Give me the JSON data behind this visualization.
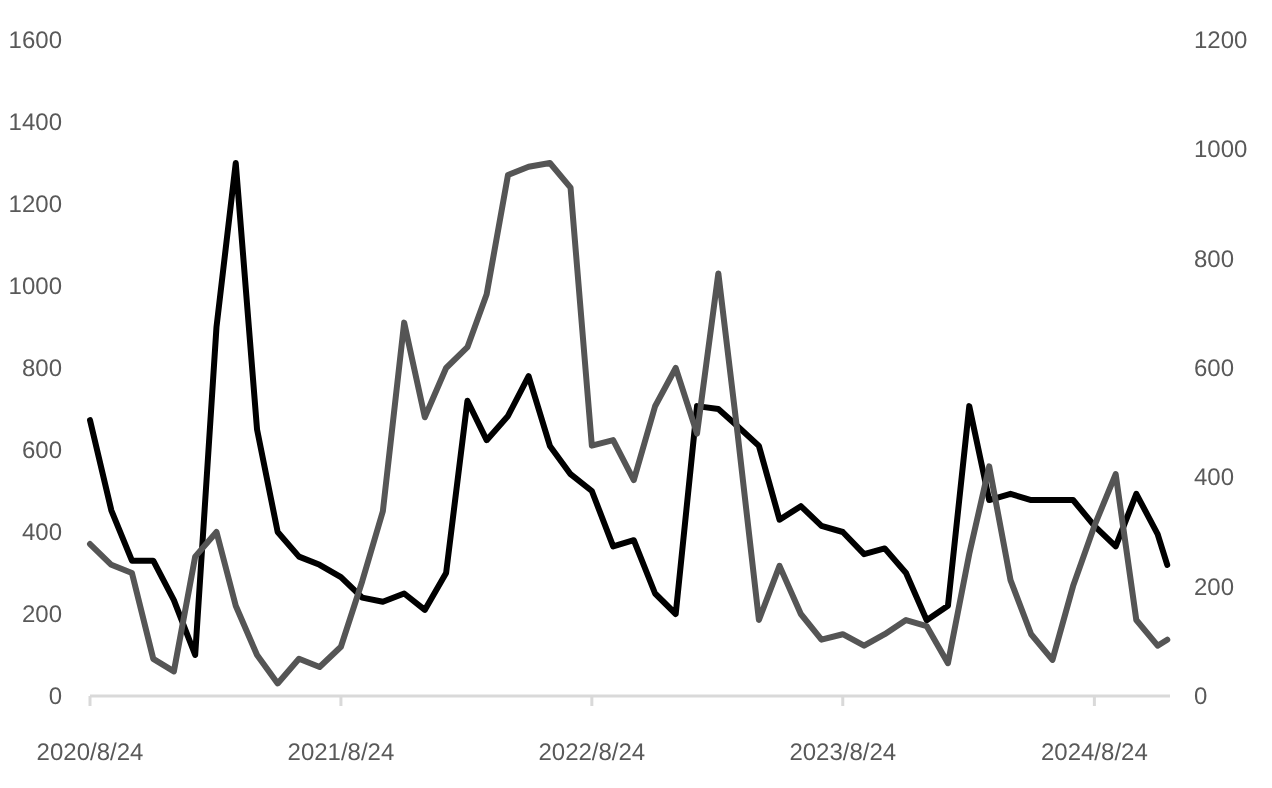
{
  "chart_data": {
    "type": "line",
    "x": [
      "2020-08-24",
      "2020-09-24",
      "2020-10-24",
      "2020-11-24",
      "2020-12-24",
      "2021-01-24",
      "2021-02-24",
      "2021-03-24",
      "2021-04-24",
      "2021-05-24",
      "2021-06-24",
      "2021-07-24",
      "2021-08-24",
      "2021-09-24",
      "2021-10-24",
      "2021-11-24",
      "2021-12-24",
      "2022-01-24",
      "2022-02-24",
      "2022-03-24",
      "2022-04-24",
      "2022-05-24",
      "2022-06-24",
      "2022-07-24",
      "2022-08-24",
      "2022-09-24",
      "2022-10-24",
      "2022-11-24",
      "2022-12-24",
      "2023-01-24",
      "2023-02-24",
      "2023-03-24",
      "2023-04-24",
      "2023-05-24",
      "2023-06-24",
      "2023-07-24",
      "2023-08-24",
      "2023-09-24",
      "2023-10-24",
      "2023-11-24",
      "2023-12-24",
      "2024-01-24",
      "2024-02-24",
      "2024-03-24",
      "2024-04-24",
      "2024-05-24",
      "2024-06-24",
      "2024-07-24",
      "2024-08-24",
      "2024-09-24",
      "2024-10-24",
      "2024-11-24",
      "2024-12-08"
    ],
    "series": [
      {
        "color": "#000000",
        "values": [
          673,
          453,
          330,
          330,
          234,
          100,
          900,
          1300,
          650,
          400,
          340,
          320,
          290,
          240,
          230,
          250,
          210,
          300,
          720,
          624,
          683,
          780,
          610,
          541,
          500,
          365,
          380,
          250,
          200,
          707,
          700,
          658,
          610,
          430,
          463,
          415,
          400,
          346,
          360,
          300,
          185,
          220,
          707,
          478,
          493,
          478,
          478,
          478,
          415,
          365,
          493,
          395,
          320
        ]
      },
      {
        "color": "#555555",
        "axis": "y2",
        "values": [
          278,
          240,
          225,
          68,
          45,
          255,
          300,
          165,
          75,
          23,
          68,
          53,
          90,
          210,
          338,
          683,
          510,
          600,
          638,
          735,
          953,
          968,
          975,
          930,
          458,
          468,
          395,
          530,
          600,
          480,
          773,
          480,
          139,
          238,
          150,
          103,
          113,
          92,
          113,
          139,
          128,
          60,
          260,
          420,
          212,
          113,
          66,
          201,
          311,
          406,
          139,
          92,
          103
        ]
      }
    ],
    "xlim": [
      "2020-08-24",
      "2024-12-12"
    ],
    "xticks": [
      {
        "value": "2020-08-24",
        "label": "2020/8/24"
      },
      {
        "value": "2021-08-24",
        "label": "2021/8/24"
      },
      {
        "value": "2022-08-24",
        "label": "2022/8/24"
      },
      {
        "value": "2023-08-24",
        "label": "2023/8/24"
      },
      {
        "value": "2024-08-24",
        "label": "2024/8/24"
      }
    ],
    "ylim": [
      0,
      1600
    ],
    "yticks": [
      0,
      200,
      400,
      600,
      800,
      1000,
      1200,
      1400,
      1600
    ],
    "y2lim": [
      0,
      1200
    ],
    "y2ticks": [
      0,
      200,
      400,
      600,
      800,
      1000,
      1200
    ],
    "grid": false,
    "marker": "none",
    "line_style": "solid"
  }
}
